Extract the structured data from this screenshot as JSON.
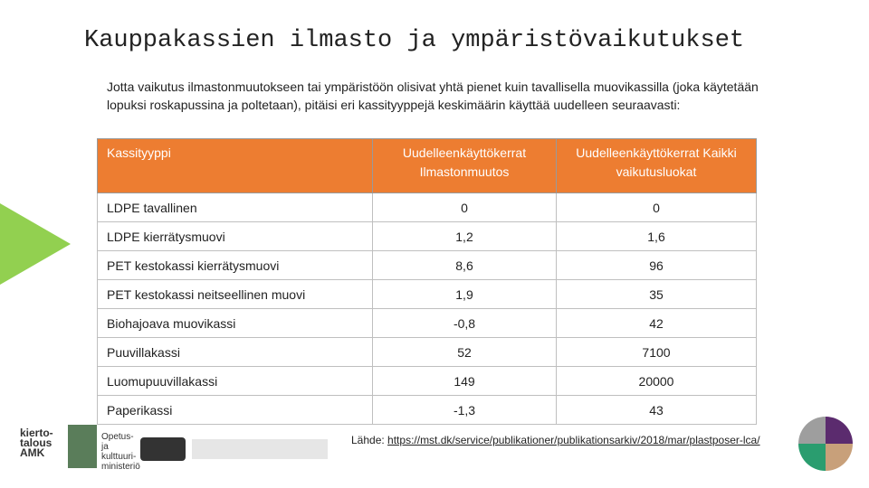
{
  "header": {
    "title": "Kauppakassien ilmasto ja ympäristövaikutukset",
    "intro": "Jotta vaikutus ilmastonmuutokseen tai ympäristöön olisivat yhtä pienet kuin tavallisella muovikassilla (joka käytetään lopuksi roskapussina ja poltetaan), pitäisi eri kassityyppejä keskimäärin käyttää uudelleen seuraavasti:"
  },
  "table": {
    "columns": [
      "Kassityyppi",
      "Uudelleenkäyttökerrat Ilmastonmuutos",
      "Uudelleenkäyttökerrat Kaikki vaikutusluokat"
    ],
    "rows": [
      [
        "LDPE tavallinen",
        "0",
        "0"
      ],
      [
        "LDPE kierrätysmuovi",
        "1,2",
        "1,6"
      ],
      [
        "PET kestokassi kierrätysmuovi",
        "8,6",
        "96"
      ],
      [
        "PET kestokassi neitseellinen muovi",
        "1,9",
        "35"
      ],
      [
        "Biohajoava muovikassi",
        "-0,8",
        "42"
      ],
      [
        "Puuvillakassi",
        "52",
        "7100"
      ],
      [
        "Luomupuuvillakassi",
        "149",
        "20000"
      ],
      [
        "Paperikassi",
        "-1,3",
        "43"
      ]
    ]
  },
  "source": {
    "label": "Lähde:",
    "link": "https://mst.dk/service/publikationer/publikationsarkiv/2018/mar/plastposer-lca/"
  },
  "logos": [
    "kierto- talous AMK",
    "Opetus- ja kulttuuri- ministeriö"
  ]
}
